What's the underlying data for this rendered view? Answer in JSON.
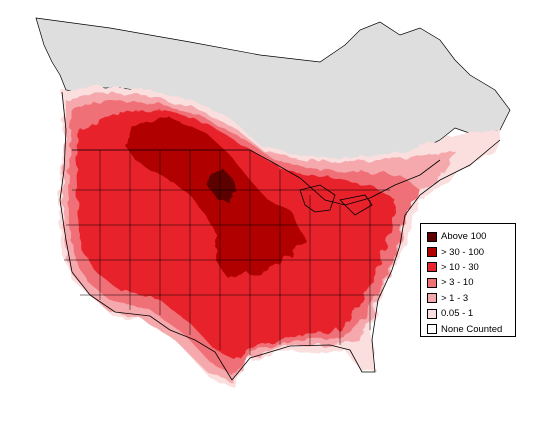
{
  "legend": {
    "items": [
      {
        "label": "Above 100",
        "color": "#5c0000"
      },
      {
        "label": "> 30 - 100",
        "color": "#b00000"
      },
      {
        "label": "> 10 - 30",
        "color": "#e8242c"
      },
      {
        "label": "> 3 - 10",
        "color": "#ef7076"
      },
      {
        "label": "> 1 - 3",
        "color": "#f5a9ad"
      },
      {
        "label": " 0.05 - 1",
        "color": "#fbdede"
      },
      {
        "label": "None Counted",
        "color": "#ffffff"
      }
    ]
  },
  "map": {
    "region": "north-america",
    "no_data_color": "#dedede",
    "boundary_color": "#000000"
  }
}
